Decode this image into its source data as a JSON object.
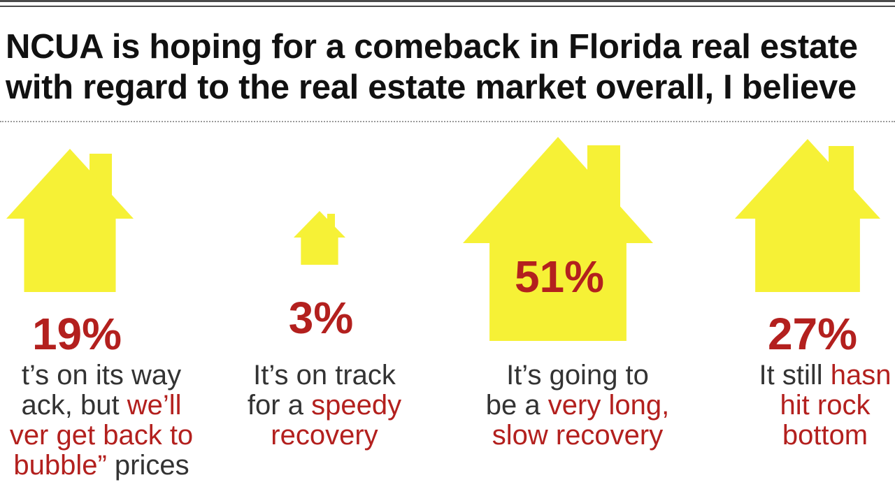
{
  "title": {
    "line1": "NCUA is hoping for a comeback in Florida real estate",
    "line2": "with regard to the real estate market overall, I believe"
  },
  "colors": {
    "house": "#f6f136",
    "accent": "#b3201e",
    "text": "#333333"
  },
  "chart_data": {
    "type": "pictograph",
    "unit": "%",
    "categories": [
      "It's on its way back, but we'll never get back to \"bubble\" prices",
      "It's on track for a speedy recovery",
      "It's going to be a very long, slow recovery",
      "It still hasn't hit rock bottom"
    ],
    "values": [
      19,
      3,
      51,
      27
    ],
    "value_labels": [
      "19%",
      "3%",
      "51%",
      "27%"
    ]
  },
  "responses": [
    {
      "value": 19,
      "pct": "19%",
      "lines": [
        [
          {
            "t": "t’s on its way",
            "h": false
          }
        ],
        [
          {
            "t": "ack, but ",
            "h": false
          },
          {
            "t": "we’ll",
            "h": true
          }
        ],
        [
          {
            "t": "ver get back to",
            "h": true
          }
        ],
        [
          {
            "t": "bubble” ",
            "h": true
          },
          {
            "t": "prices",
            "h": false
          }
        ]
      ]
    },
    {
      "value": 3,
      "pct": "3%",
      "lines": [
        [
          {
            "t": "It’s on track",
            "h": false
          }
        ],
        [
          {
            "t": "for a ",
            "h": false
          },
          {
            "t": "speedy",
            "h": true
          }
        ],
        [
          {
            "t": "recovery",
            "h": true
          }
        ]
      ]
    },
    {
      "value": 51,
      "pct": "51%",
      "lines": [
        [
          {
            "t": "It’s going to",
            "h": false
          }
        ],
        [
          {
            "t": "be a ",
            "h": false
          },
          {
            "t": "very long,",
            "h": true
          }
        ],
        [
          {
            "t": "slow recovery",
            "h": true
          }
        ]
      ]
    },
    {
      "value": 27,
      "pct": "27%",
      "lines": [
        [
          {
            "t": "It still ",
            "h": false
          },
          {
            "t": "hasn",
            "h": true
          }
        ],
        [
          {
            "t": "hit rock",
            "h": true
          }
        ],
        [
          {
            "t": "bottom",
            "h": true
          }
        ]
      ]
    }
  ]
}
